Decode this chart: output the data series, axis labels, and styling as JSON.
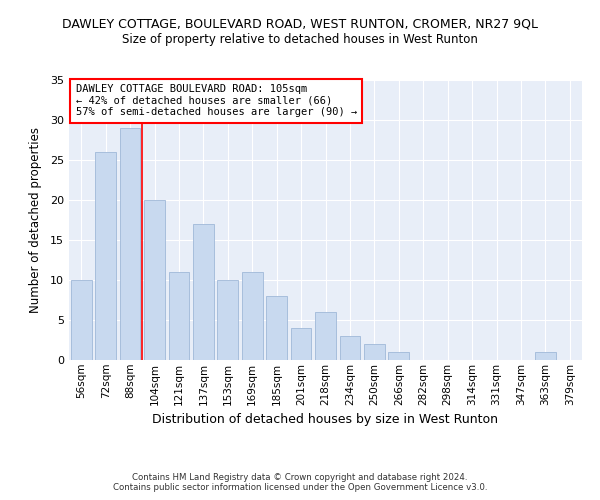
{
  "title": "DAWLEY COTTAGE, BOULEVARD ROAD, WEST RUNTON, CROMER, NR27 9QL",
  "subtitle": "Size of property relative to detached houses in West Runton",
  "xlabel": "Distribution of detached houses by size in West Runton",
  "ylabel": "Number of detached properties",
  "categories": [
    "56sqm",
    "72sqm",
    "88sqm",
    "104sqm",
    "121sqm",
    "137sqm",
    "153sqm",
    "169sqm",
    "185sqm",
    "201sqm",
    "218sqm",
    "234sqm",
    "250sqm",
    "266sqm",
    "282sqm",
    "298sqm",
    "314sqm",
    "331sqm",
    "347sqm",
    "363sqm",
    "379sqm"
  ],
  "values": [
    10,
    26,
    29,
    20,
    11,
    17,
    10,
    11,
    8,
    4,
    6,
    3,
    2,
    1,
    0,
    0,
    0,
    0,
    0,
    1,
    0
  ],
  "bar_color": "#c8d9ef",
  "bar_edge_color": "#a0b8d8",
  "red_line_index": 3,
  "annotation_text": "DAWLEY COTTAGE BOULEVARD ROAD: 105sqm\n← 42% of detached houses are smaller (66)\n57% of semi-detached houses are larger (90) →",
  "ylim": [
    0,
    35
  ],
  "yticks": [
    0,
    5,
    10,
    15,
    20,
    25,
    30,
    35
  ],
  "background_color": "#e8eef8",
  "footer_line1": "Contains HM Land Registry data © Crown copyright and database right 2024.",
  "footer_line2": "Contains public sector information licensed under the Open Government Licence v3.0."
}
